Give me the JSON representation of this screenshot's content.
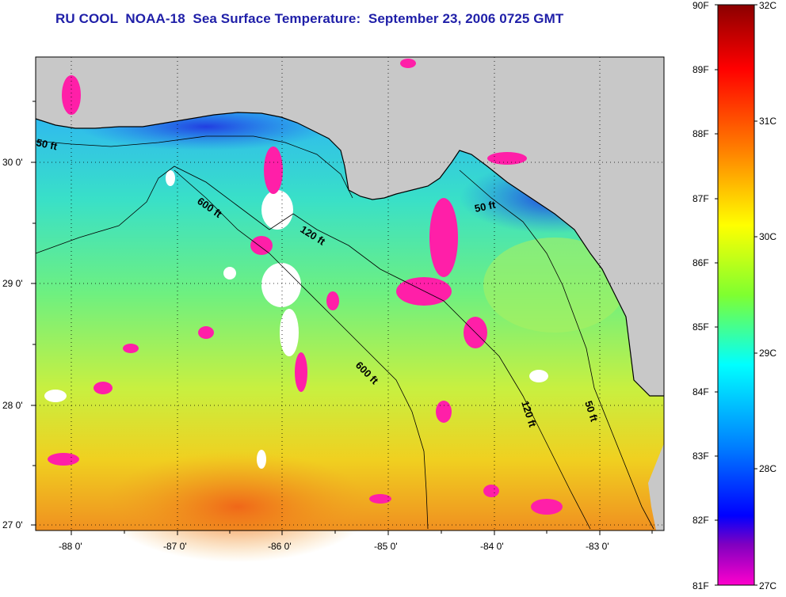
{
  "title": "RU COOL  NOAA-18  Sea Surface Temperature:  September 23, 2006 0725 GMT",
  "map": {
    "longitude_ticks": [
      "-88 0'",
      "-87 0'",
      "-86 0'",
      "-85 0'",
      "-84 0'",
      "-83 0'"
    ],
    "latitude_ticks": [
      "30 0'",
      "29 0'",
      "28 0'",
      "27 0'"
    ],
    "contour_labels": [
      "50 ft",
      "600 ft",
      "120 ft",
      "50 ft",
      "600 ft",
      "120 ft",
      "50 ft"
    ],
    "colors": {
      "land": "#c8c8c8",
      "cloud": "#ffffff",
      "coastline": "#000000"
    }
  },
  "colorbar": {
    "fahrenheit_labels": [
      "90F",
      "89F",
      "88F",
      "87F",
      "86F",
      "85F",
      "84F",
      "83F",
      "82F",
      "81F"
    ],
    "celsius_labels": [
      "32C",
      "31C",
      "30C",
      "29C",
      "28C",
      "27C"
    ],
    "gradient_colors": [
      "#8b0000",
      "#ff0000",
      "#ff7f00",
      "#ffff00",
      "#7fff00",
      "#00ffff",
      "#0080ff",
      "#0000ff",
      "#8000c0",
      "#ff00cc"
    ]
  }
}
